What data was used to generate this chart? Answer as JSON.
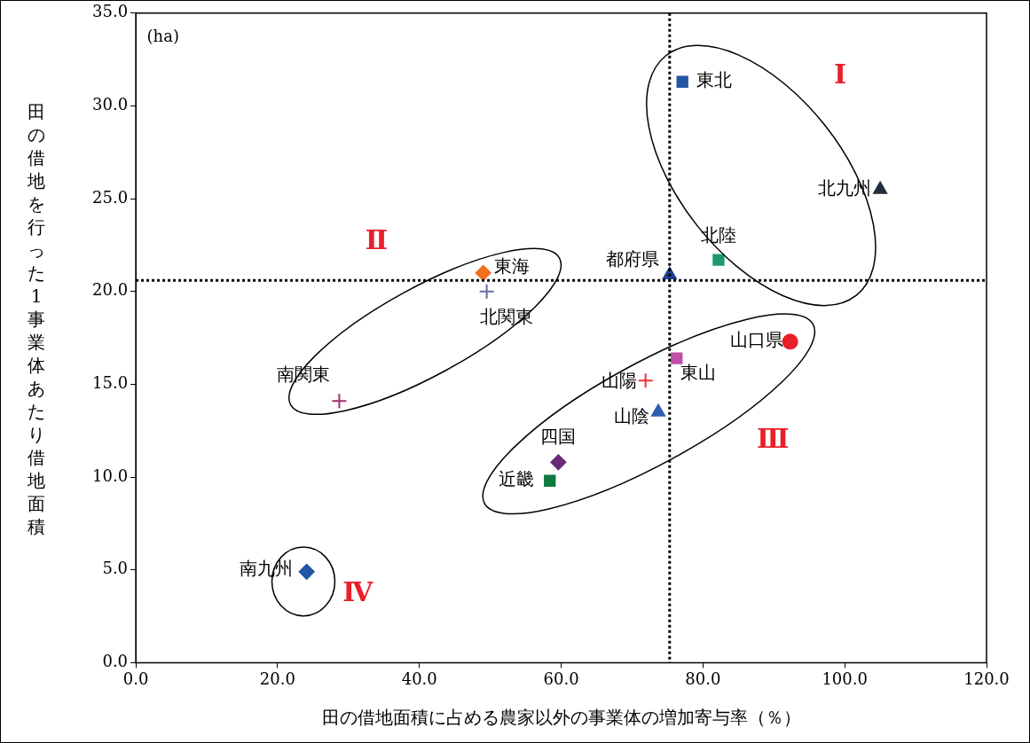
{
  "chart_data": {
    "type": "scatter",
    "xlabel": "田の借地面積に占める農家以外の事業体の増加寄与率（％）",
    "ylabel": "田の借地を行った1事業体あたり借地面積",
    "xlim": [
      0,
      120
    ],
    "ylim": [
      0,
      35
    ],
    "xticks": [
      {
        "value": 0,
        "label": "0.0"
      },
      {
        "value": 20,
        "label": "20.0"
      },
      {
        "value": 40,
        "label": "40.0"
      },
      {
        "value": 60,
        "label": "60.0"
      },
      {
        "value": 80,
        "label": "80.0"
      },
      {
        "value": 100,
        "label": "100.0"
      },
      {
        "value": 120,
        "label": "120.0"
      }
    ],
    "yticks": [
      {
        "value": 0,
        "label": "0.0"
      },
      {
        "value": 5,
        "label": "5.0"
      },
      {
        "value": 10,
        "label": "10.0"
      },
      {
        "value": 15,
        "label": "15.0"
      },
      {
        "value": 20,
        "label": "20.0"
      },
      {
        "value": 25,
        "label": "25.0"
      },
      {
        "value": 30,
        "label": "30.0"
      },
      {
        "value": 35,
        "label": "35.0"
      }
    ],
    "grid": false,
    "legend": false,
    "series": [
      {
        "name": "東北",
        "color": "#2255a4",
        "marker": "square",
        "x": [
          77.1
        ],
        "values": [
          31.3
        ]
      },
      {
        "name": "北九州",
        "color": "#1f2d3d",
        "marker": "triangle",
        "x": [
          105.0
        ],
        "values": [
          25.5
        ]
      },
      {
        "name": "北陸",
        "color": "#1e9a6a",
        "marker": "square",
        "x": [
          82.2
        ],
        "values": [
          21.7
        ]
      },
      {
        "name": "都府県",
        "color": "#1f3f8f",
        "marker": "triangle",
        "x": [
          75.3
        ],
        "values": [
          20.9
        ]
      },
      {
        "name": "東海",
        "color": "#f07020",
        "marker": "diamond",
        "x": [
          49.0
        ],
        "values": [
          21.0
        ]
      },
      {
        "name": "北関東",
        "color": "#6a6aa8",
        "marker": "cross",
        "x": [
          49.5
        ],
        "values": [
          20.0
        ]
      },
      {
        "name": "山口県",
        "color": "#e8202a",
        "marker": "circle",
        "x": [
          92.3
        ],
        "values": [
          17.3
        ]
      },
      {
        "name": "東山",
        "color": "#c050a8",
        "marker": "square",
        "x": [
          76.3
        ],
        "values": [
          16.4
        ]
      },
      {
        "name": "山陽",
        "color": "#f03030",
        "marker": "cross",
        "x": [
          71.9
        ],
        "values": [
          15.2
        ]
      },
      {
        "name": "山陰",
        "color": "#2f5fb0",
        "marker": "triangle",
        "x": [
          73.7
        ],
        "values": [
          13.5
        ]
      },
      {
        "name": "南関東",
        "color": "#a0306a",
        "marker": "cross",
        "x": [
          28.7
        ],
        "values": [
          14.1
        ]
      },
      {
        "name": "四国",
        "color": "#6a2a78",
        "marker": "diamond",
        "x": [
          59.6
        ],
        "values": [
          10.8
        ]
      },
      {
        "name": "近畿",
        "color": "#107a40",
        "marker": "square",
        "x": [
          58.4
        ],
        "values": [
          9.8
        ]
      },
      {
        "name": "南九州",
        "color": "#2255a4",
        "marker": "diamond",
        "x": [
          24.1
        ],
        "values": [
          4.9
        ]
      }
    ],
    "ref_lines": [
      {
        "axis": "x",
        "value": 75.3,
        "color": "#000000",
        "line_style": "dotted"
      },
      {
        "axis": "y",
        "value": 20.6,
        "color": "#000000",
        "line_style": "dotted"
      }
    ],
    "annotations": [
      "(ha)",
      "Ⅰ",
      "Ⅱ",
      "Ⅲ",
      "Ⅳ"
    ]
  }
}
